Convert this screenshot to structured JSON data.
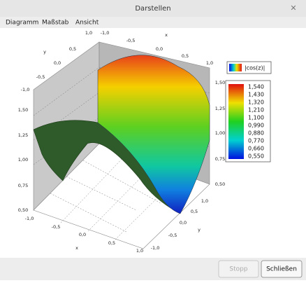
{
  "window": {
    "title": "Darstellen"
  },
  "menu": {
    "items": [
      "Diagramm",
      "Maßstab",
      "Ansicht"
    ]
  },
  "plot": {
    "legend": {
      "label": "|cos(z)|"
    },
    "colorbar": {
      "ticks": [
        "1,540",
        "1,430",
        "1,320",
        "1,210",
        "1,100",
        "0,990",
        "0,880",
        "0,770",
        "0,660",
        "0,550"
      ]
    },
    "axes": {
      "top_x": {
        "title": "x",
        "ticks": [
          "-1,0",
          "-0,5",
          "0,0",
          "0,5",
          "1,0"
        ]
      },
      "top_y": {
        "title": "y",
        "ticks": [
          "1,0",
          "0,5",
          "0,0",
          "-0,5",
          "-1,0"
        ]
      },
      "left_z": {
        "ticks": [
          "1,50",
          "1,25",
          "1,00",
          "0,75",
          "0,50"
        ]
      },
      "right_z": {
        "ticks": [
          "1,50",
          "1,25",
          "1,00",
          "0,75",
          "0,50"
        ]
      },
      "bottom_x": {
        "title": "x",
        "ticks": [
          "-1,0",
          "-0,5",
          "0,0",
          "0,5",
          "1,0"
        ]
      },
      "bottom_y": {
        "title": "y",
        "ticks": [
          "1,0",
          "0,5",
          "0,0",
          "-0,5",
          "-1,0"
        ]
      }
    }
  },
  "buttons": {
    "stop": "Stopp",
    "close": "Schließen"
  }
}
